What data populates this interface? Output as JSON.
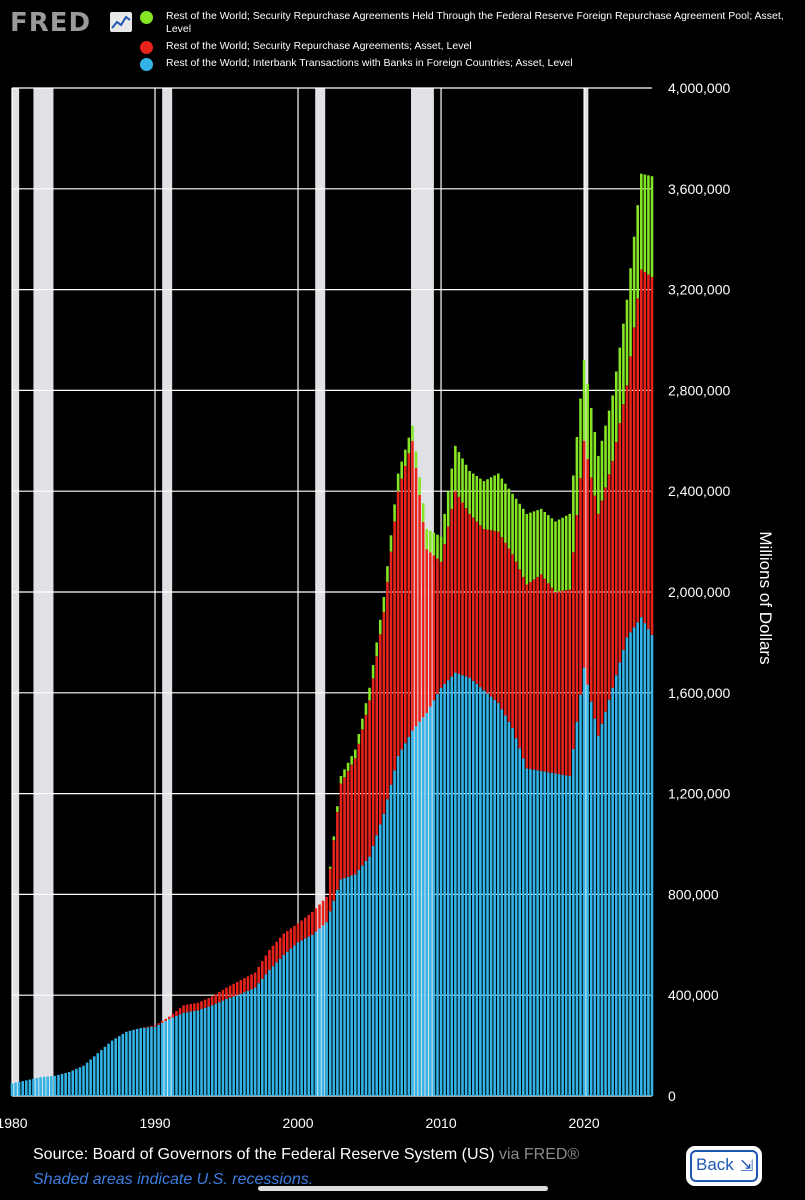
{
  "header": {
    "logo_text": "FRED"
  },
  "chart_data": {
    "type": "bar",
    "stacked": true,
    "title": "",
    "xlabel": "",
    "ylabel": "Millions of Dollars",
    "xlim": [
      1980,
      2024.75
    ],
    "ylim": [
      0,
      4000000
    ],
    "y_ticks": [
      0,
      400000,
      800000,
      1200000,
      1600000,
      2000000,
      2400000,
      2800000,
      3200000,
      3600000,
      4000000
    ],
    "y_tick_labels": [
      "0",
      "400,000",
      "800,000",
      "1,200,000",
      "1,600,000",
      "2,000,000",
      "2,400,000",
      "2,800,000",
      "3,200,000",
      "3,600,000",
      "4,000,000"
    ],
    "x_ticks": [
      1980,
      1990,
      2000,
      2010,
      2020
    ],
    "x_tick_labels": [
      "1980",
      "1990",
      "2000",
      "2010",
      "2020"
    ],
    "grid": true,
    "legend_position": "top",
    "recessions": [
      [
        1980.0,
        1980.5
      ],
      [
        1981.5,
        1982.9
      ],
      [
        1990.5,
        1991.2
      ],
      [
        2001.2,
        2001.9
      ],
      [
        2007.9,
        2009.5
      ],
      [
        2020.0,
        2020.3
      ]
    ],
    "series": [
      {
        "name": "Rest of the World; Interbank Transactions with Banks in Foreign Countries; Asset, Level",
        "color": "#34b4e6",
        "points": [
          [
            1980,
            50000
          ],
          [
            1981,
            62000
          ],
          [
            1982,
            75000
          ],
          [
            1983,
            80000
          ],
          [
            1984,
            95000
          ],
          [
            1985,
            120000
          ],
          [
            1986,
            170000
          ],
          [
            1987,
            220000
          ],
          [
            1988,
            255000
          ],
          [
            1989,
            270000
          ],
          [
            1990,
            275000
          ],
          [
            1991,
            305000
          ],
          [
            1992,
            330000
          ],
          [
            1993,
            340000
          ],
          [
            1994,
            360000
          ],
          [
            1995,
            385000
          ],
          [
            1996,
            405000
          ],
          [
            1997,
            430000
          ],
          [
            1998,
            500000
          ],
          [
            1999,
            560000
          ],
          [
            2000,
            610000
          ],
          [
            2001,
            640000
          ],
          [
            2002,
            690000
          ],
          [
            2003,
            860000
          ],
          [
            2004,
            880000
          ],
          [
            2005,
            950000
          ],
          [
            2006,
            1120000
          ],
          [
            2007,
            1350000
          ],
          [
            2008,
            1450000
          ],
          [
            2009,
            1520000
          ],
          [
            2010,
            1620000
          ],
          [
            2011,
            1680000
          ],
          [
            2012,
            1660000
          ],
          [
            2013,
            1610000
          ],
          [
            2014,
            1560000
          ],
          [
            2015,
            1460000
          ],
          [
            2016,
            1300000
          ],
          [
            2017,
            1290000
          ],
          [
            2018,
            1280000
          ],
          [
            2019,
            1270000
          ],
          [
            2020,
            1700000
          ],
          [
            2021,
            1430000
          ],
          [
            2022,
            1620000
          ],
          [
            2023,
            1820000
          ],
          [
            2024,
            1900000
          ],
          [
            2024.75,
            1830000
          ]
        ]
      },
      {
        "name": "Rest of the World; Security Repurchase Agreements; Asset, Level",
        "color": "#e8231c",
        "points": [
          [
            1980,
            0
          ],
          [
            1981,
            0
          ],
          [
            1982,
            0
          ],
          [
            1983,
            0
          ],
          [
            1984,
            0
          ],
          [
            1985,
            0
          ],
          [
            1986,
            0
          ],
          [
            1987,
            0
          ],
          [
            1988,
            0
          ],
          [
            1989,
            0
          ],
          [
            1990,
            5000
          ],
          [
            1991,
            10000
          ],
          [
            1992,
            30000
          ],
          [
            1993,
            30000
          ],
          [
            1994,
            35000
          ],
          [
            1995,
            45000
          ],
          [
            1996,
            55000
          ],
          [
            1997,
            60000
          ],
          [
            1998,
            80000
          ],
          [
            1999,
            85000
          ],
          [
            2000,
            75000
          ],
          [
            2001,
            90000
          ],
          [
            2002,
            100000
          ],
          [
            2003,
            380000
          ],
          [
            2004,
            460000
          ],
          [
            2005,
            620000
          ],
          [
            2006,
            800000
          ],
          [
            2007,
            1050000
          ],
          [
            2008,
            1150000
          ],
          [
            2009,
            650000
          ],
          [
            2010,
            500000
          ],
          [
            2011,
            720000
          ],
          [
            2012,
            650000
          ],
          [
            2013,
            640000
          ],
          [
            2014,
            680000
          ],
          [
            2015,
            690000
          ],
          [
            2016,
            730000
          ],
          [
            2017,
            780000
          ],
          [
            2018,
            720000
          ],
          [
            2019,
            740000
          ],
          [
            2020,
            900000
          ],
          [
            2021,
            880000
          ],
          [
            2022,
            900000
          ],
          [
            2023,
            1000000
          ],
          [
            2024,
            1380000
          ],
          [
            2024.75,
            1420000
          ]
        ]
      },
      {
        "name": "Rest of the World; Security Repurchase Agreements Held Through the Federal Reserve Foreign Repurchase Agreement Pool; Asset, Level",
        "color": "#86e626",
        "points": [
          [
            1980,
            0
          ],
          [
            1981,
            0
          ],
          [
            1982,
            0
          ],
          [
            1983,
            0
          ],
          [
            1984,
            0
          ],
          [
            1985,
            0
          ],
          [
            1986,
            0
          ],
          [
            1987,
            0
          ],
          [
            1988,
            0
          ],
          [
            1989,
            0
          ],
          [
            1990,
            0
          ],
          [
            1991,
            0
          ],
          [
            1992,
            0
          ],
          [
            1993,
            0
          ],
          [
            1994,
            0
          ],
          [
            1995,
            0
          ],
          [
            1996,
            0
          ],
          [
            1997,
            0
          ],
          [
            1998,
            0
          ],
          [
            1999,
            0
          ],
          [
            2000,
            0
          ],
          [
            2001,
            0
          ],
          [
            2002,
            0
          ],
          [
            2003,
            30000
          ],
          [
            2004,
            35000
          ],
          [
            2005,
            50000
          ],
          [
            2006,
            60000
          ],
          [
            2007,
            70000
          ],
          [
            2008,
            60000
          ],
          [
            2009,
            80000
          ],
          [
            2010,
            100000
          ],
          [
            2011,
            180000
          ],
          [
            2012,
            170000
          ],
          [
            2013,
            190000
          ],
          [
            2014,
            230000
          ],
          [
            2015,
            240000
          ],
          [
            2016,
            280000
          ],
          [
            2017,
            260000
          ],
          [
            2018,
            280000
          ],
          [
            2019,
            300000
          ],
          [
            2020,
            320000
          ],
          [
            2021,
            230000
          ],
          [
            2022,
            260000
          ],
          [
            2023,
            340000
          ],
          [
            2024,
            380000
          ],
          [
            2024.75,
            400000
          ]
        ]
      }
    ]
  },
  "footer": {
    "source_label": "Source: Board of Governors of the Federal Reserve System (US)",
    "via_label": " via FRED®",
    "note": "Shaded areas indicate U.S. recessions.",
    "back_label": "Back"
  }
}
